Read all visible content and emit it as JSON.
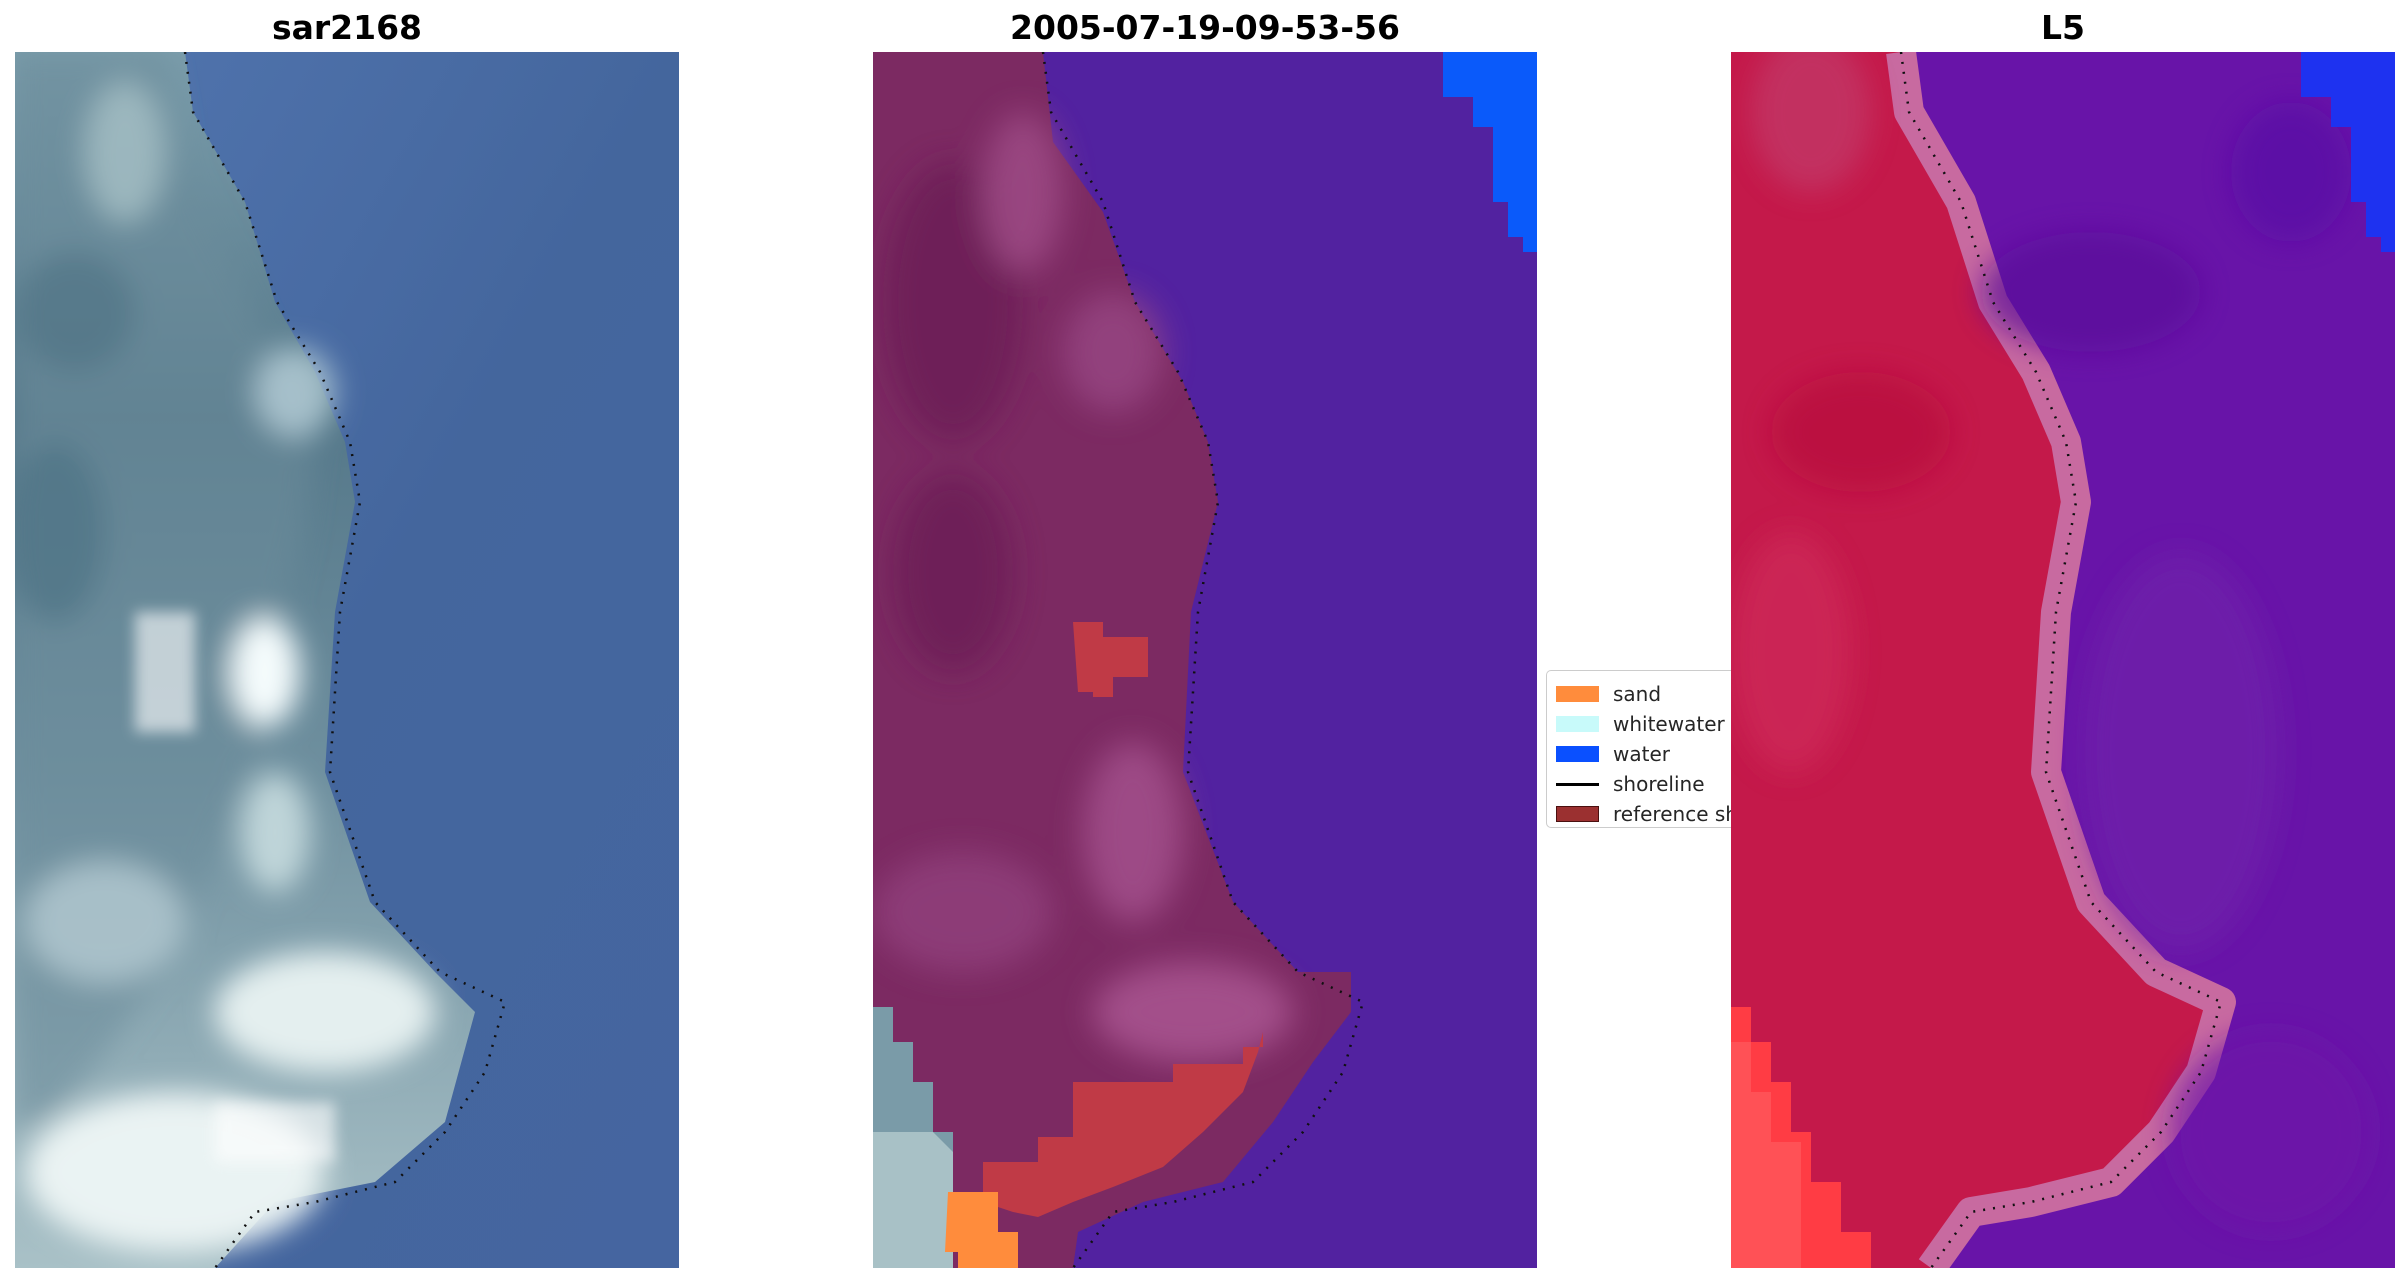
{
  "panels": [
    {
      "title": "sar2168"
    },
    {
      "title": "2005-07-19-09-53-56"
    },
    {
      "title": "L5"
    }
  ],
  "legend": {
    "items": [
      {
        "label": "sand",
        "color": "#ff8c3c",
        "kind": "patch"
      },
      {
        "label": "whitewater",
        "color": "#c8fafa",
        "kind": "patch"
      },
      {
        "label": "water",
        "color": "#0a50ff",
        "kind": "patch"
      },
      {
        "label": "shoreline",
        "color": "#000000",
        "kind": "line"
      },
      {
        "label": "reference shoreline",
        "color": "#9b3030",
        "kind": "patch"
      }
    ]
  },
  "colors": {
    "sar_water": "#44669a",
    "sar_land": "#5d7e8e",
    "sar_bright": "#e8f3f4",
    "class_water": "#5222a0",
    "class_land": "#7c2a62",
    "class_blue": "#0a5afa",
    "class_reference": "#c03a46",
    "class_sand": "#ff8c3c",
    "l5_land": "#c4194a",
    "l5_water": "#6814a8",
    "l5_blue": "#1e32f0",
    "l5_red": "#ff3c44"
  }
}
